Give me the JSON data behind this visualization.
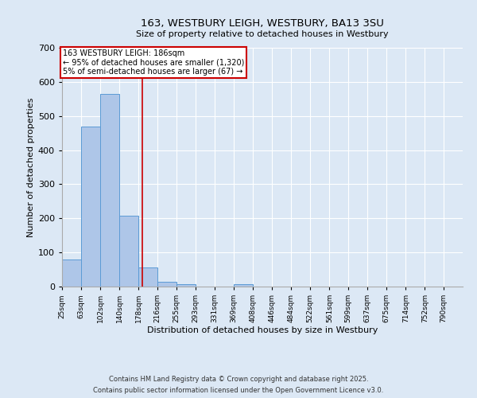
{
  "title1": "163, WESTBURY LEIGH, WESTBURY, BA13 3SU",
  "title2": "Size of property relative to detached houses in Westbury",
  "xlabel": "Distribution of detached houses by size in Westbury",
  "ylabel": "Number of detached properties",
  "bin_labels": [
    "25sqm",
    "63sqm",
    "102sqm",
    "140sqm",
    "178sqm",
    "216sqm",
    "255sqm",
    "293sqm",
    "331sqm",
    "369sqm",
    "408sqm",
    "446sqm",
    "484sqm",
    "522sqm",
    "561sqm",
    "599sqm",
    "637sqm",
    "675sqm",
    "714sqm",
    "752sqm",
    "790sqm"
  ],
  "bin_edges": [
    25,
    63,
    102,
    140,
    178,
    216,
    255,
    293,
    331,
    369,
    408,
    446,
    484,
    522,
    561,
    599,
    637,
    675,
    714,
    752,
    790
  ],
  "bar_heights": [
    80,
    468,
    565,
    208,
    55,
    15,
    7,
    0,
    0,
    7,
    0,
    0,
    0,
    0,
    0,
    0,
    0,
    0,
    0,
    0
  ],
  "bar_color": "#aec6e8",
  "bar_edge_color": "#5b9bd5",
  "property_size": 186,
  "red_line_color": "#cc0000",
  "annotation_text": "163 WESTBURY LEIGH: 186sqm\n← 95% of detached houses are smaller (1,320)\n5% of semi-detached houses are larger (67) →",
  "annotation_box_color": "#ffffff",
  "annotation_box_edge": "#cc0000",
  "ylim": [
    0,
    700
  ],
  "yticks": [
    0,
    100,
    200,
    300,
    400,
    500,
    600,
    700
  ],
  "background_color": "#dce8f5",
  "grid_color": "#ffffff",
  "footer1": "Contains HM Land Registry data © Crown copyright and database right 2025.",
  "footer2": "Contains public sector information licensed under the Open Government Licence v3.0."
}
